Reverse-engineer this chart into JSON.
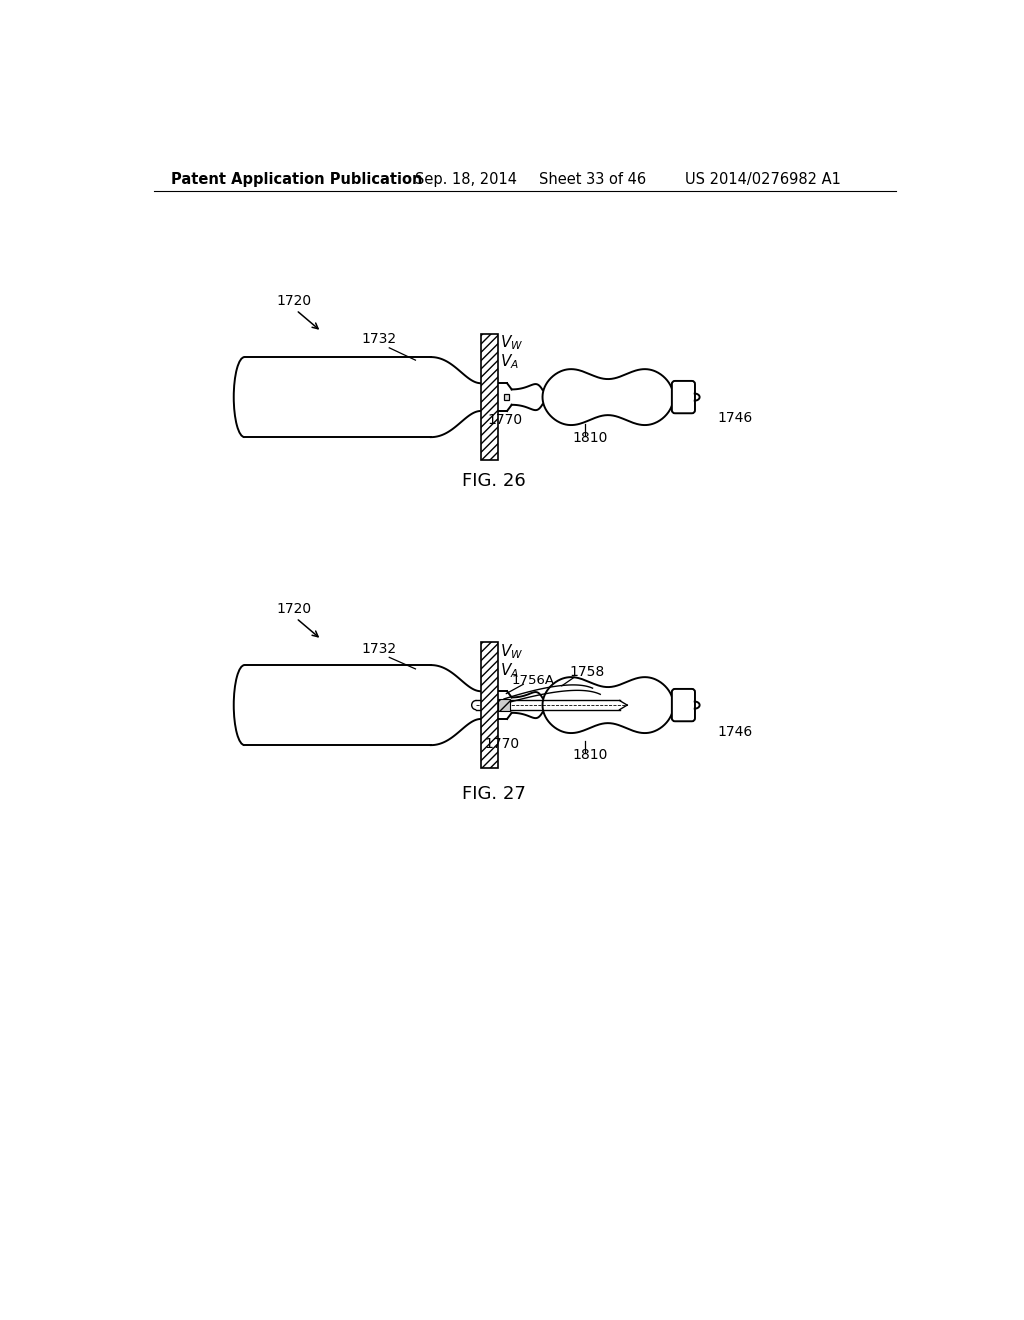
{
  "background_color": "#ffffff",
  "header_text": "Patent Application Publication",
  "header_date": "Sep. 18, 2014",
  "header_sheet": "Sheet 33 of 46",
  "header_patent": "US 2014/0276982 A1",
  "fig26_label": "FIG. 26",
  "fig27_label": "FIG. 27",
  "line_color": "#000000",
  "label_fontsize": 10,
  "header_fontsize": 10.5
}
